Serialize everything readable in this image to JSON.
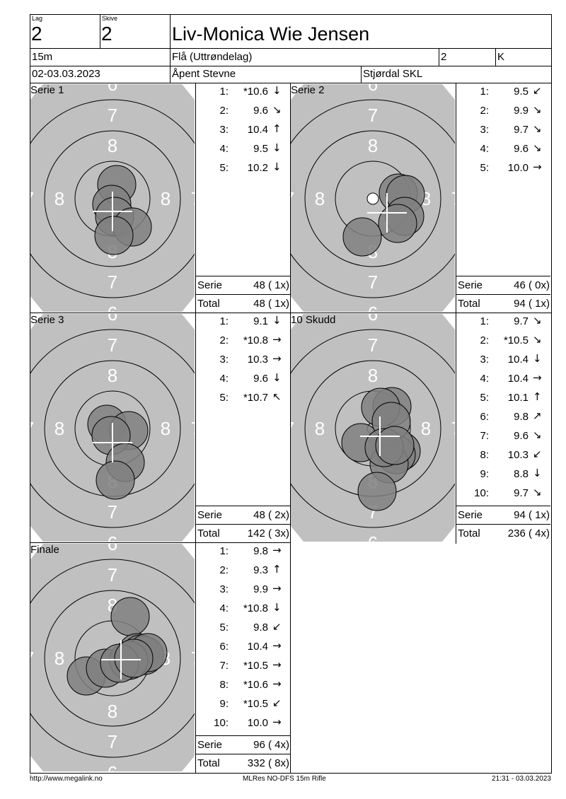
{
  "header": {
    "lag_label": "Lag",
    "lag": "2",
    "skive_label": "Skive",
    "skive": "2",
    "name": "Liv-Monica Wie Jensen",
    "distance": "15m",
    "club": "Flå (Uttrøndelag)",
    "klasse_num": "2",
    "klasse": "K",
    "date": "02-03.03.2023",
    "event": "Åpent Stevne",
    "organizer": "Stjørdal SKL"
  },
  "panels": [
    {
      "title": "Serie 1",
      "shots": [
        {
          "n": "1:",
          "score": "*10.6",
          "arrow": "arrow-down"
        },
        {
          "n": "2:",
          "score": "9.6",
          "arrow": "arrow-down-right"
        },
        {
          "n": "3:",
          "score": "10.4",
          "arrow": "arrow-up"
        },
        {
          "n": "4:",
          "score": "9.5",
          "arrow": "arrow-down"
        },
        {
          "n": "5:",
          "score": "10.2",
          "arrow": "arrow-down"
        }
      ],
      "serie_label": "Serie",
      "serie": "48 ( 1x)",
      "total_label": "Total",
      "total": "48 ( 1x)"
    },
    {
      "title": "Serie 2",
      "shots": [
        {
          "n": "1:",
          "score": "9.5",
          "arrow": "arrow-down-left"
        },
        {
          "n": "2:",
          "score": "9.9",
          "arrow": "arrow-down-right"
        },
        {
          "n": "3:",
          "score": "9.7",
          "arrow": "arrow-down-right"
        },
        {
          "n": "4:",
          "score": "9.6",
          "arrow": "arrow-down-right"
        },
        {
          "n": "5:",
          "score": "10.0",
          "arrow": "arrow-right"
        }
      ],
      "serie_label": "Serie",
      "serie": "46 ( 0x)",
      "total_label": "Total",
      "total": "94 ( 1x)"
    },
    {
      "title": "Serie 3",
      "shots": [
        {
          "n": "1:",
          "score": "9.1",
          "arrow": "arrow-down"
        },
        {
          "n": "2:",
          "score": "*10.8",
          "arrow": "arrow-right"
        },
        {
          "n": "3:",
          "score": "10.3",
          "arrow": "arrow-right"
        },
        {
          "n": "4:",
          "score": "9.6",
          "arrow": "arrow-down"
        },
        {
          "n": "5:",
          "score": "*10.7",
          "arrow": "arrow-up-left"
        }
      ],
      "serie_label": "Serie",
      "serie": "48 ( 2x)",
      "total_label": "Total",
      "total": "142 ( 3x)"
    },
    {
      "title": "10 Skudd",
      "shots": [
        {
          "n": "1:",
          "score": "9.7",
          "arrow": "arrow-down-right"
        },
        {
          "n": "2:",
          "score": "*10.5",
          "arrow": "arrow-down-right"
        },
        {
          "n": "3:",
          "score": "10.4",
          "arrow": "arrow-down"
        },
        {
          "n": "4:",
          "score": "10.4",
          "arrow": "arrow-right"
        },
        {
          "n": "5:",
          "score": "10.1",
          "arrow": "arrow-up"
        },
        {
          "n": "6:",
          "score": "9.8",
          "arrow": "arrow-up-right"
        },
        {
          "n": "7:",
          "score": "9.6",
          "arrow": "arrow-down-right"
        },
        {
          "n": "8:",
          "score": "10.3",
          "arrow": "arrow-down-left"
        },
        {
          "n": "9:",
          "score": "8.8",
          "arrow": "arrow-down"
        },
        {
          "n": "10:",
          "score": "9.7",
          "arrow": "arrow-down-right"
        }
      ],
      "serie_label": "Serie",
      "serie": "94 ( 1x)",
      "total_label": "Total",
      "total": "236 ( 4x)"
    },
    {
      "title": "Finale",
      "shots": [
        {
          "n": "1:",
          "score": "9.8",
          "arrow": "arrow-right"
        },
        {
          "n": "2:",
          "score": "9.3",
          "arrow": "arrow-up"
        },
        {
          "n": "3:",
          "score": "9.9",
          "arrow": "arrow-right"
        },
        {
          "n": "4:",
          "score": "*10.8",
          "arrow": "arrow-down"
        },
        {
          "n": "5:",
          "score": "9.8",
          "arrow": "arrow-down-left"
        },
        {
          "n": "6:",
          "score": "10.4",
          "arrow": "arrow-right"
        },
        {
          "n": "7:",
          "score": "*10.5",
          "arrow": "arrow-right"
        },
        {
          "n": "8:",
          "score": "*10.6",
          "arrow": "arrow-right"
        },
        {
          "n": "9:",
          "score": "*10.5",
          "arrow": "arrow-down-left"
        },
        {
          "n": "10:",
          "score": "10.0",
          "arrow": "arrow-right"
        }
      ],
      "serie_label": "Serie",
      "serie": "96 ( 4x)",
      "total_label": "Total",
      "total": "332 ( 8x)"
    }
  ],
  "target": {
    "ring_labels": [
      "8",
      "7",
      "6"
    ],
    "background_color": "#c0c0c0",
    "shot_color": "#808080"
  },
  "footer": {
    "left": "http://www.megalink.no",
    "center": "MLRes NO-DFS 15m Rifle",
    "right": "21:31 - 03.03.2023"
  }
}
